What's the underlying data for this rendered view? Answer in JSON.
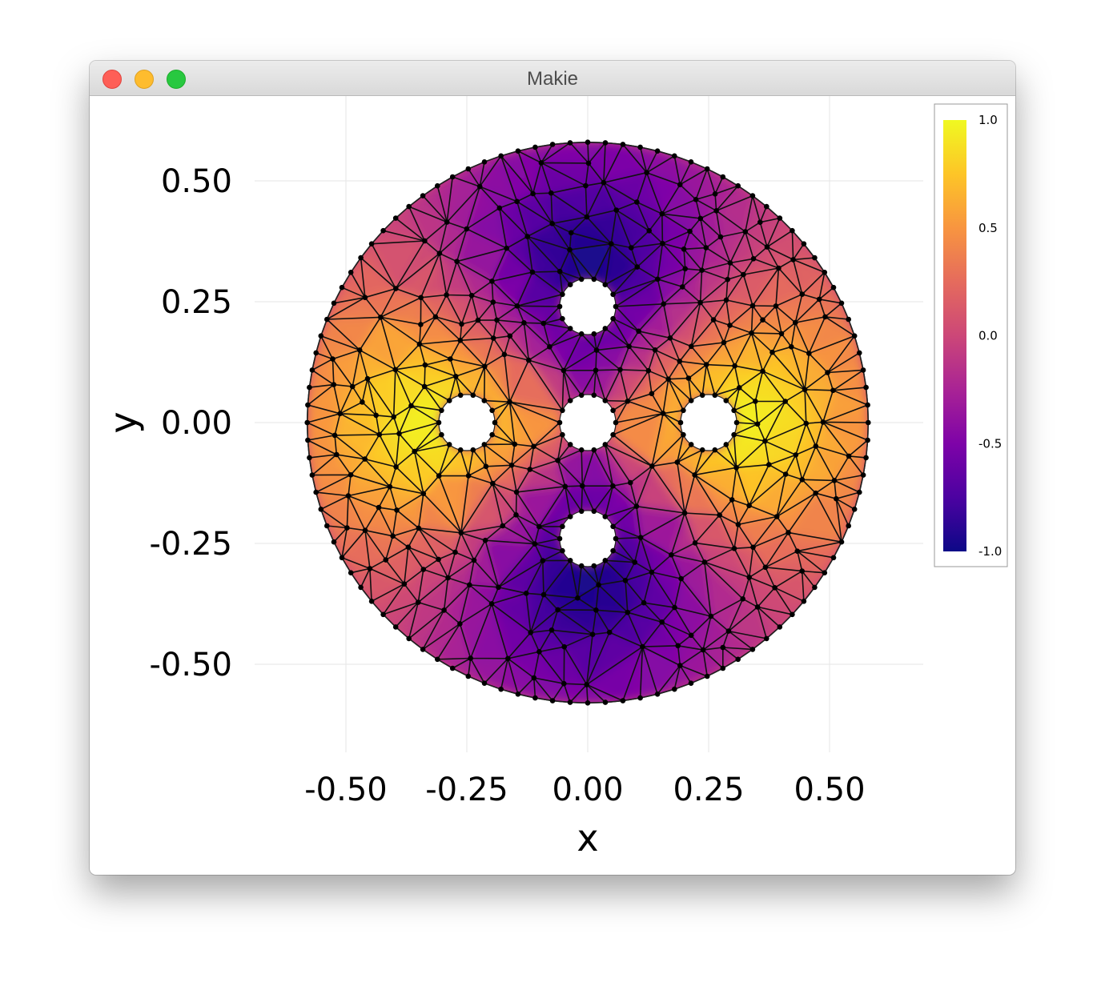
{
  "window": {
    "title": "Makie"
  },
  "chart_data": {
    "type": "mesh",
    "xlabel": "x",
    "ylabel": "y",
    "xlim": [
      -0.67,
      0.69
    ],
    "ylim": [
      -0.68,
      0.67
    ],
    "xticks": [
      "-0.50",
      "-0.25",
      "0.00",
      "0.25",
      "0.50"
    ],
    "yticks": [
      "0.50",
      "0.25",
      "0.00",
      "-0.25",
      "-0.50"
    ],
    "xtick_values": [
      -0.5,
      -0.25,
      0.0,
      0.25,
      0.5
    ],
    "ytick_values": [
      0.5,
      0.25,
      0.0,
      -0.25,
      -0.5
    ],
    "grid": true,
    "domain": {
      "outer_radius": 0.58,
      "holes": [
        {
          "x": 0.0,
          "y": 0.24,
          "r": 0.058
        },
        {
          "x": -0.25,
          "y": 0.0,
          "r": 0.058
        },
        {
          "x": 0.0,
          "y": 0.0,
          "r": 0.058
        },
        {
          "x": 0.25,
          "y": 0.0,
          "r": 0.058
        },
        {
          "x": 0.0,
          "y": -0.24,
          "r": 0.058
        }
      ]
    },
    "colormap": "plasma",
    "colorbar": {
      "range": [
        -1.0,
        1.0
      ],
      "ticks": [
        "1.0",
        "0.5",
        "0.0",
        "-0.5",
        "-1.0"
      ],
      "tick_values": [
        1.0,
        0.5,
        0.0,
        -0.5,
        -1.0
      ]
    }
  }
}
